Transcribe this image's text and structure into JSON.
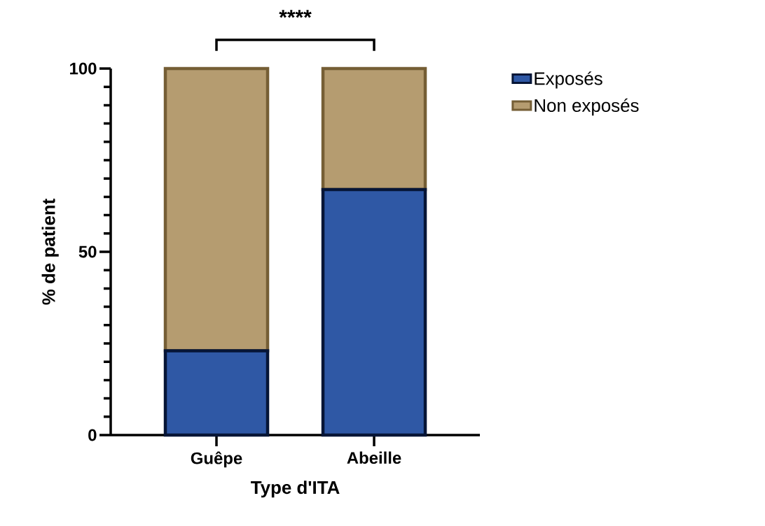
{
  "chart_data": {
    "type": "bar",
    "stacked": true,
    "xlabel": "Type d'ITA",
    "ylabel": "% de patient",
    "categories": [
      "Guêpe",
      "Abeille"
    ],
    "series": [
      {
        "name": "Exposés",
        "color": "#2f58a5",
        "values": [
          23,
          67
        ]
      },
      {
        "name": "Non exposés",
        "color": "#b59c70",
        "values": [
          77,
          33
        ]
      }
    ],
    "ylim": [
      0,
      100
    ],
    "yticks": [
      0,
      50,
      100
    ],
    "legend": "top right",
    "annotations": [
      "****"
    ]
  }
}
